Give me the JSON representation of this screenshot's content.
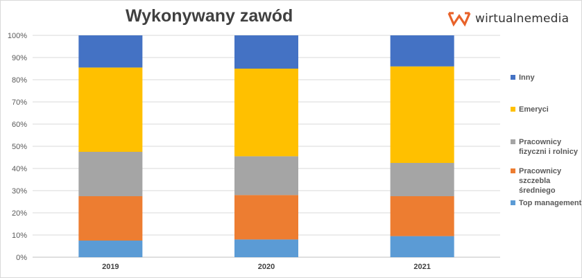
{
  "brand": {
    "name": "wirtualnemedia",
    "icon": "wm-logo-icon",
    "color": "#e8622a"
  },
  "chart_data": {
    "type": "bar",
    "stacked": true,
    "percent": true,
    "title": "Wykonywany zawód",
    "categories": [
      "2019",
      "2020",
      "2021"
    ],
    "ylim": [
      0,
      100
    ],
    "yticks": [
      "0%",
      "10%",
      "20%",
      "30%",
      "40%",
      "50%",
      "60%",
      "70%",
      "80%",
      "90%",
      "100%"
    ],
    "grid": true,
    "legend_position": "right",
    "series": [
      {
        "name": "Top management",
        "color": "#5b9bd5",
        "values": [
          7.5,
          8,
          9.5
        ]
      },
      {
        "name": "Pracownicy szczebla średniego",
        "color": "#ed7d31",
        "values": [
          20,
          20,
          18
        ]
      },
      {
        "name": "Pracownicy fizyczni i rolnicy",
        "color": "#a5a5a5",
        "values": [
          20,
          17.5,
          15
        ]
      },
      {
        "name": "Emeryci",
        "color": "#ffc000",
        "values": [
          38,
          39.5,
          43.5
        ]
      },
      {
        "name": "Inny",
        "color": "#4472c4",
        "values": [
          14.5,
          15,
          14
        ]
      }
    ]
  }
}
